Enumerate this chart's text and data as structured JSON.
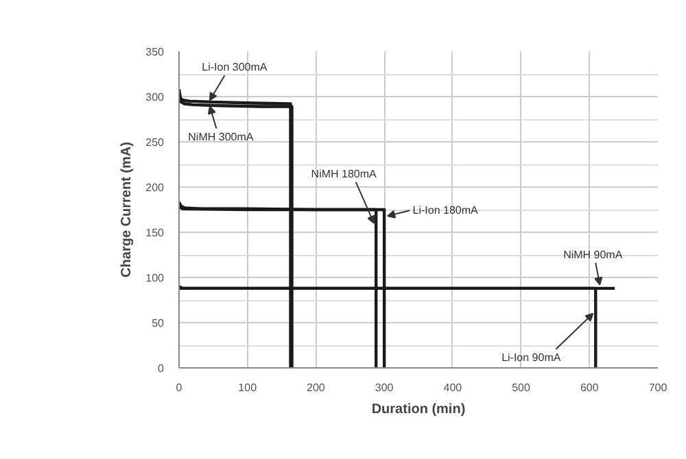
{
  "chart_data": {
    "type": "line",
    "xlabel": "Duration (min)",
    "ylabel": "Charge Current (mA)",
    "xlim": [
      0,
      700
    ],
    "ylim": [
      0,
      350
    ],
    "xticks": [
      0,
      100,
      200,
      300,
      400,
      500,
      600,
      700
    ],
    "yticks": [
      0,
      50,
      100,
      150,
      200,
      250,
      300,
      350
    ],
    "grid": true,
    "marker": "none",
    "line_style": "solid",
    "series": [
      {
        "color": "#1a1a1a",
        "x": [
          0,
          2,
          6,
          15,
          50,
          100,
          163,
          163
        ],
        "values": [
          308,
          298,
          296,
          295,
          294,
          293,
          292,
          0
        ]
      },
      {
        "color": "#1a1a1a",
        "x": [
          0,
          3,
          8,
          20,
          60,
          120,
          165,
          165
        ],
        "values": [
          302,
          294,
          292,
          291,
          290,
          289,
          289,
          0
        ]
      },
      {
        "color": "#1a1a1a",
        "x": [
          0,
          3,
          8,
          30,
          100,
          200,
          288,
          288
        ],
        "values": [
          183,
          179,
          177,
          176,
          176,
          175,
          175,
          0
        ]
      },
      {
        "color": "#1a1a1a",
        "x": [
          0,
          5,
          100,
          200,
          300,
          300
        ],
        "values": [
          178,
          176,
          175,
          175,
          175,
          0
        ]
      },
      {
        "color": "#1a1a1a",
        "x": [
          0,
          5,
          100,
          300,
          500,
          637
        ],
        "values": [
          90,
          88,
          88,
          88,
          88,
          88
        ]
      },
      {
        "color": "#1a1a1a",
        "x": [
          0,
          100,
          300,
          500,
          609,
          609
        ],
        "values": [
          88,
          88,
          88,
          88,
          88,
          0
        ]
      }
    ],
    "annotations": [
      {
        "text": "Li-Ion 300mA",
        "x": 45,
        "y": 296
      },
      {
        "text": "NiMH 300mA",
        "x": 45,
        "y": 289
      },
      {
        "text": "NiMH 180mA",
        "x": 285,
        "y": 160
      },
      {
        "text": "Li-Ion 180mA",
        "x": 305,
        "y": 168
      },
      {
        "text": "NiMH 90mA",
        "x": 615,
        "y": 92
      },
      {
        "text": "Li-Ion 90mA",
        "x": 605,
        "y": 60
      }
    ]
  }
}
